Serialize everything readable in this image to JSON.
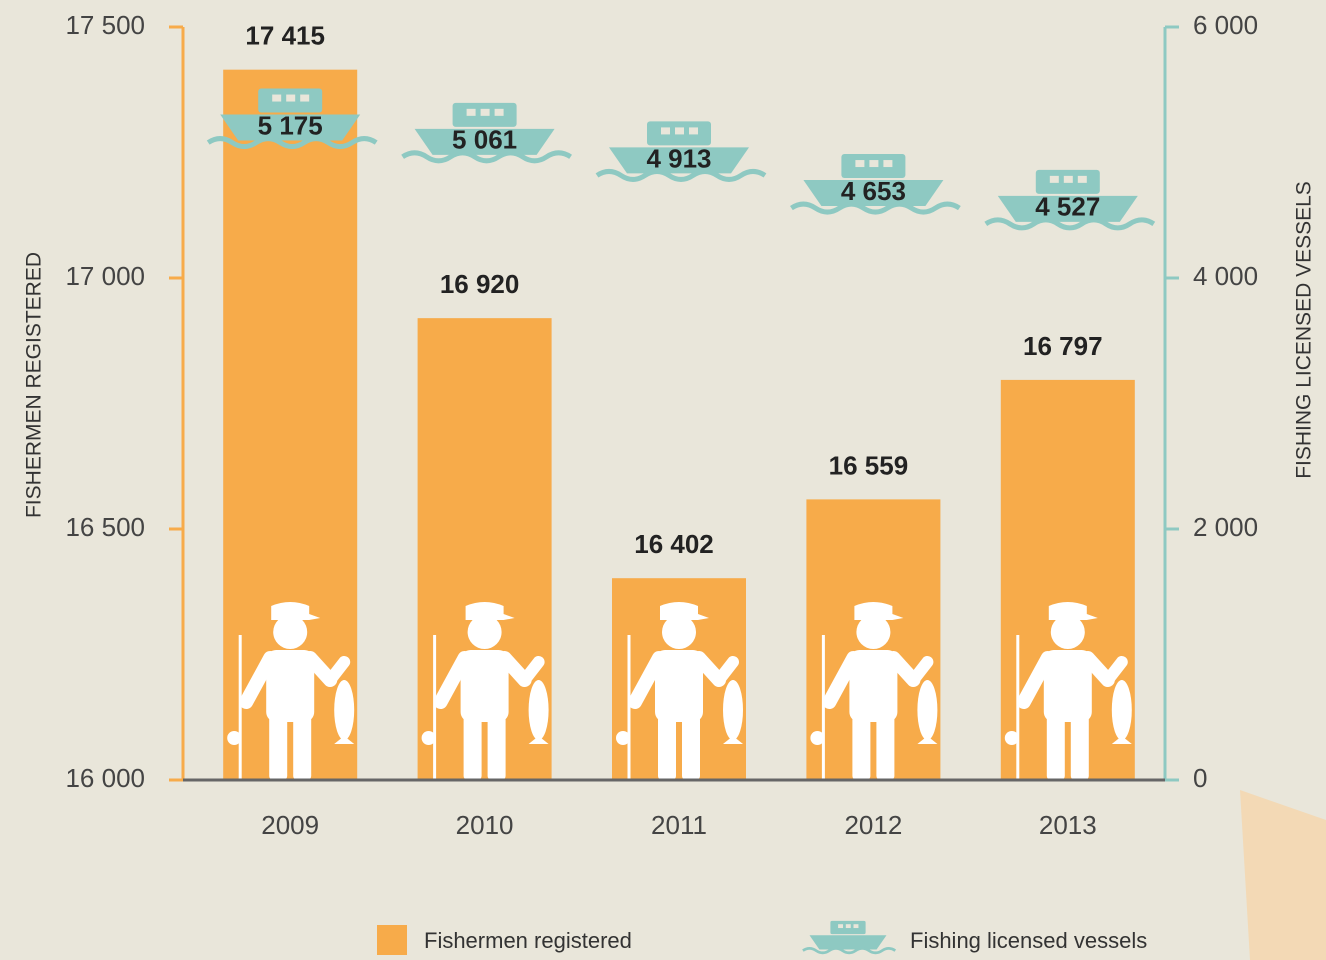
{
  "chart_data": {
    "type": "bar",
    "categories": [
      "2009",
      "2010",
      "2011",
      "2012",
      "2013"
    ],
    "series": [
      {
        "name": "Fishermen registered",
        "color": "#f7ab4a",
        "values": [
          17415,
          16920,
          16402,
          16559,
          16797
        ],
        "value_labels": [
          "17 415",
          "16 920",
          "16 402",
          "16 559",
          "16 797"
        ]
      },
      {
        "name": "Fishing licensed vessels",
        "color": "#8ec9c2",
        "axis": "y2",
        "values": [
          5175,
          5061,
          4913,
          4653,
          4527
        ],
        "value_labels": [
          "5 175",
          "5 061",
          "4 913",
          "4 653",
          "4 527"
        ]
      }
    ],
    "ylabel": "FISHERMEN REGISTERED",
    "y2label": "FISHING LICENSED VESSELS",
    "ylim": [
      16000,
      17500
    ],
    "yticks": [
      {
        "value": 16000,
        "label": "16 000"
      },
      {
        "value": 16500,
        "label": "16 500"
      },
      {
        "value": 17000,
        "label": "17 000"
      },
      {
        "value": 17500,
        "label": "17 500"
      }
    ],
    "y2lim": [
      0,
      6000
    ],
    "y2ticks": [
      0,
      {
        "value": 2000,
        "label": "2 000"
      },
      {
        "value": 4000,
        "label": "4 000"
      },
      {
        "value": 6000,
        "label": "6 000"
      }
    ]
  }
}
